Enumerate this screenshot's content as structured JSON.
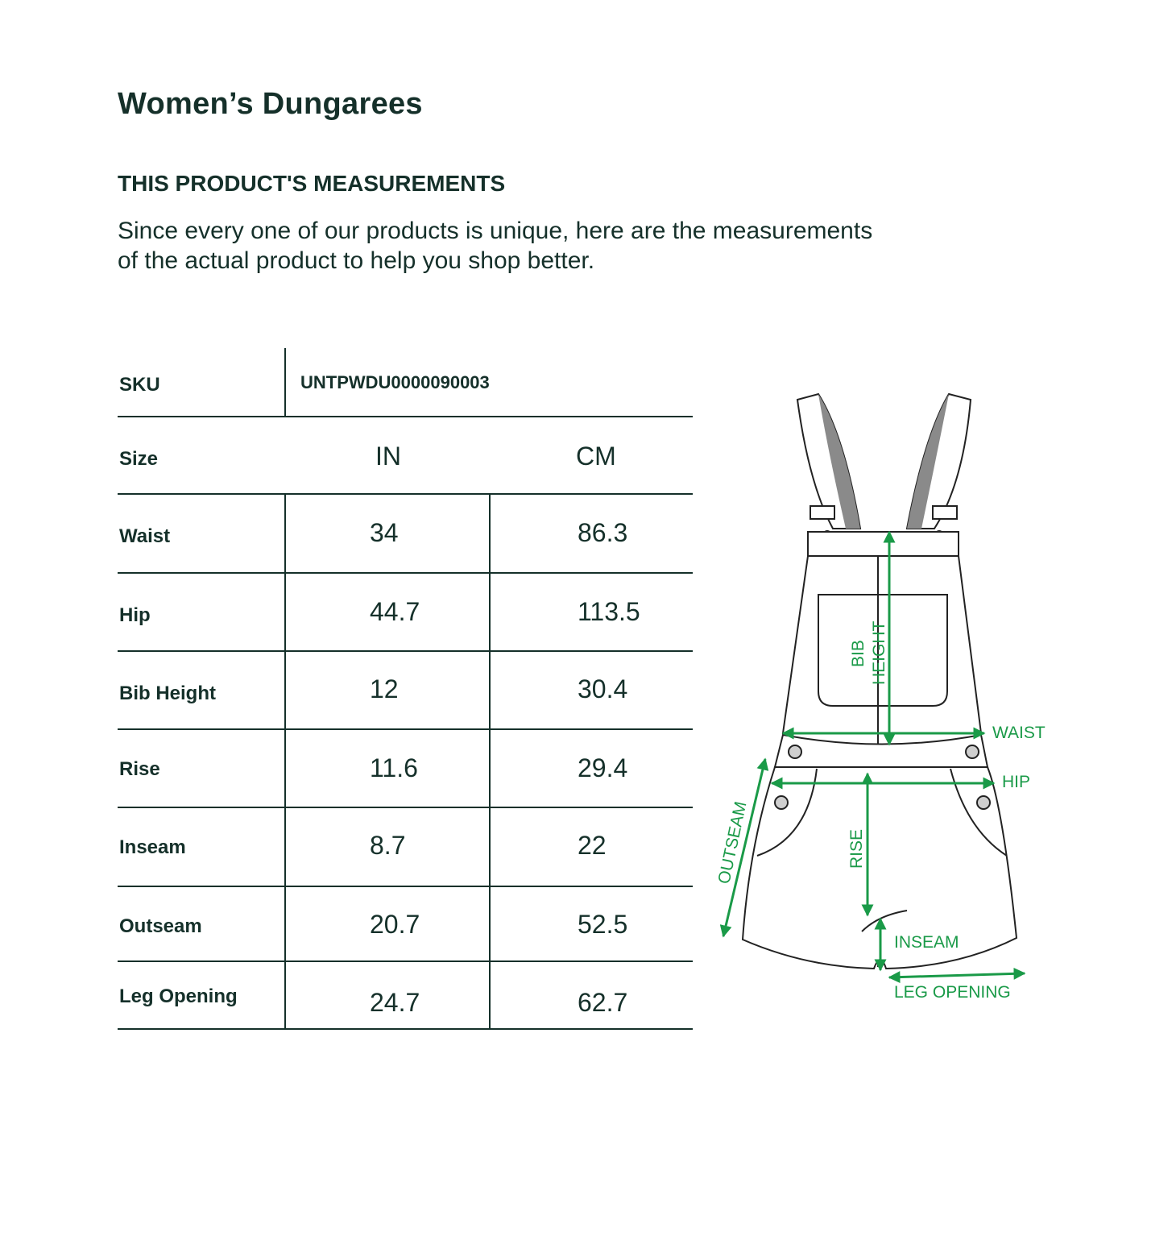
{
  "title": "Women’s Dungarees",
  "subtitle": "THIS PRODUCT'S MEASUREMENTS",
  "description_line1": "Since every one of our products is unique, here are the measurements",
  "description_line2": "of the actual product to help you shop better.",
  "table": {
    "sku_label": "SKU",
    "sku_value": "UNTPWDU0000090003",
    "size_label": "Size",
    "col_in": "IN",
    "col_cm": "CM",
    "rows": [
      {
        "label": "Waist",
        "in": "34",
        "cm": "86.3"
      },
      {
        "label": "Hip",
        "in": "44.7",
        "cm": "113.5"
      },
      {
        "label": "Bib Height",
        "in": "12",
        "cm": "30.4"
      },
      {
        "label": "Rise",
        "in": "11.6",
        "cm": "29.4"
      },
      {
        "label": "Inseam",
        "in": "8.7",
        "cm": "22"
      },
      {
        "label": "Outseam",
        "in": "20.7",
        "cm": "52.5"
      },
      {
        "label": "Leg Opening",
        "in": "24.7",
        "cm": "62.7"
      }
    ]
  },
  "diagram": {
    "bib_height_line1": "BIB",
    "bib_height_line2": "HEIGHT",
    "waist": "WAIST",
    "hip": "HIP",
    "outseam": "OUTSEAM",
    "rise": "RISE",
    "inseam": "INSEAM",
    "leg_opening": "LEG OPENING",
    "accent_color": "#1a9a48",
    "outline_color": "#222222",
    "strap_inner_color": "#8a8a8a"
  }
}
